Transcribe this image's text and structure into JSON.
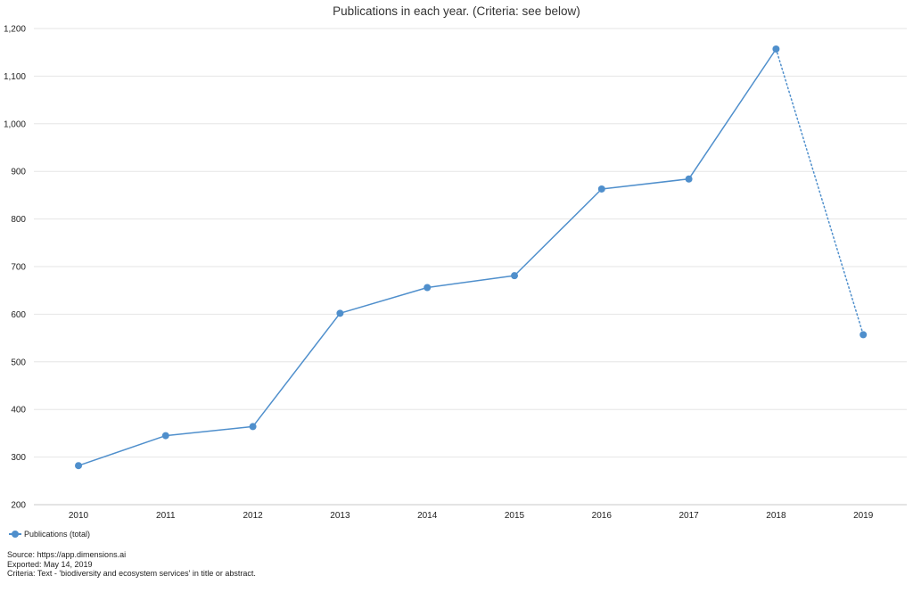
{
  "chart_data": {
    "type": "line",
    "title": "Publications in each year. (Criteria: see below)",
    "xlabel": "",
    "ylabel": "",
    "categories": [
      "2010",
      "2011",
      "2012",
      "2013",
      "2014",
      "2015",
      "2016",
      "2017",
      "2018",
      "2019"
    ],
    "series": [
      {
        "name": "Publications (total)",
        "values": [
          282,
          345,
          364,
          602,
          656,
          681,
          863,
          884,
          1157,
          557
        ],
        "color": "#4f8fcc",
        "dotted_last_segment": true
      }
    ],
    "ylim": [
      200,
      1200
    ],
    "yticks": [
      200,
      300,
      400,
      500,
      600,
      700,
      800,
      900,
      1000,
      1100,
      1200
    ],
    "ytick_labels": [
      "200",
      "300",
      "400",
      "500",
      "600",
      "700",
      "800",
      "900",
      "1,000",
      "1,100",
      "1,200"
    ],
    "grid": true,
    "legend": "bottom-left"
  },
  "footer": {
    "source": "Source: https://app.dimensions.ai",
    "exported": "Exported: May 14, 2019",
    "criteria": "Criteria: Text - 'biodiversity and ecosystem services' in title or abstract."
  }
}
